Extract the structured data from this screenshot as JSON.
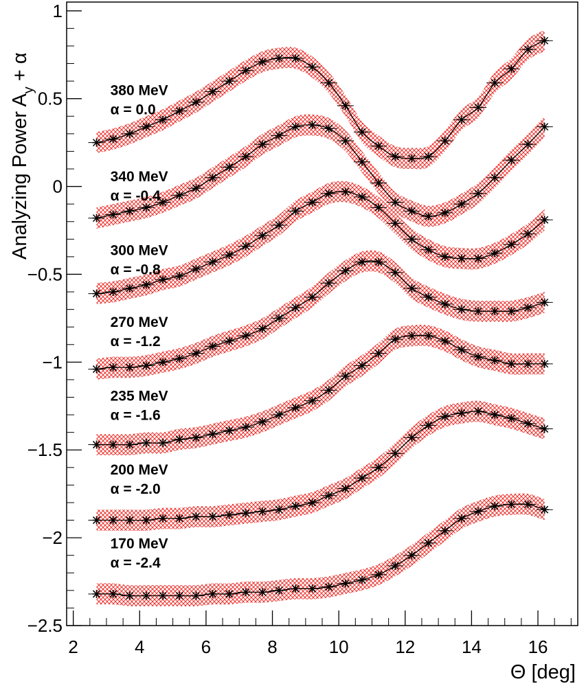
{
  "chart_data": {
    "type": "line",
    "xlabel": "Θ [deg]",
    "ylabel_main": "Analyzing Power A",
    "ylabel_sub": "y",
    "ylabel_tail": " + α",
    "xlim": [
      1.8,
      17.2
    ],
    "ylim": [
      -2.5,
      1.05
    ],
    "xticks": [
      2,
      4,
      6,
      8,
      10,
      12,
      14,
      16
    ],
    "xtick_labels": [
      "2",
      "4",
      "6",
      "8",
      "10",
      "12",
      "14",
      "16"
    ],
    "yticks": [
      1,
      0.5,
      0,
      -0.5,
      -1,
      -1.5,
      -2,
      -2.5
    ],
    "ytick_labels": [
      "1",
      "0.5",
      "0",
      "−0.5",
      "−1",
      "−1.5",
      "−2",
      "−2.5"
    ],
    "band_color": "#e8322d",
    "marker_color": "#000000",
    "series": [
      {
        "energy": "380 MeV",
        "alpha_label": "α = 0.0",
        "label_x": 3.2,
        "label_y": 0.52,
        "band_halfwidth": 0.06,
        "x": [
          2.7,
          3.2,
          3.7,
          4.2,
          4.7,
          5.2,
          5.7,
          6.2,
          6.7,
          7.2,
          7.7,
          8.2,
          8.7,
          9.2,
          9.7,
          10.2,
          10.7,
          11.2,
          11.7,
          12.2,
          12.7,
          13.2,
          13.7,
          14.2,
          14.7,
          15.2,
          15.7,
          16.2
        ],
        "y": [
          0.25,
          0.27,
          0.3,
          0.34,
          0.38,
          0.43,
          0.48,
          0.54,
          0.6,
          0.66,
          0.71,
          0.73,
          0.73,
          0.68,
          0.59,
          0.46,
          0.31,
          0.23,
          0.17,
          0.16,
          0.17,
          0.26,
          0.38,
          0.45,
          0.59,
          0.67,
          0.78,
          0.83
        ]
      },
      {
        "energy": "340 MeV",
        "alpha_label": "α = -0.4",
        "label_x": 3.2,
        "label_y": 0.03,
        "band_halfwidth": 0.06,
        "x": [
          2.7,
          3.2,
          3.7,
          4.2,
          4.7,
          5.2,
          5.7,
          6.2,
          6.7,
          7.2,
          7.7,
          8.2,
          8.7,
          9.2,
          9.7,
          10.2,
          10.7,
          11.2,
          11.7,
          12.2,
          12.7,
          13.2,
          13.7,
          14.2,
          14.7,
          15.2,
          15.7,
          16.2
        ],
        "y": [
          -0.18,
          -0.16,
          -0.14,
          -0.12,
          -0.09,
          -0.05,
          -0.01,
          0.05,
          0.11,
          0.17,
          0.24,
          0.29,
          0.34,
          0.35,
          0.33,
          0.26,
          0.14,
          0.02,
          -0.09,
          -0.14,
          -0.17,
          -0.15,
          -0.1,
          -0.04,
          0.05,
          0.15,
          0.24,
          0.34
        ]
      },
      {
        "energy": "300 MeV",
        "alpha_label": "α = -0.8",
        "label_x": 3.2,
        "label_y": -0.39,
        "band_halfwidth": 0.06,
        "x": [
          2.7,
          3.2,
          3.7,
          4.2,
          4.7,
          5.2,
          5.7,
          6.2,
          6.7,
          7.2,
          7.7,
          8.2,
          8.7,
          9.2,
          9.7,
          10.2,
          10.7,
          11.2,
          11.7,
          12.2,
          12.7,
          13.2,
          13.7,
          14.2,
          14.7,
          15.2,
          15.7,
          16.2
        ],
        "y": [
          -0.61,
          -0.6,
          -0.58,
          -0.56,
          -0.53,
          -0.51,
          -0.47,
          -0.43,
          -0.39,
          -0.34,
          -0.28,
          -0.22,
          -0.14,
          -0.09,
          -0.04,
          -0.03,
          -0.06,
          -0.12,
          -0.21,
          -0.3,
          -0.36,
          -0.4,
          -0.41,
          -0.41,
          -0.38,
          -0.33,
          -0.27,
          -0.19
        ]
      },
      {
        "energy": "270 MeV",
        "alpha_label": "α = -1.2",
        "label_x": 3.2,
        "label_y": -0.8,
        "band_halfwidth": 0.06,
        "x": [
          2.7,
          3.2,
          3.7,
          4.2,
          4.7,
          5.2,
          5.7,
          6.2,
          6.7,
          7.2,
          7.7,
          8.2,
          8.7,
          9.2,
          9.7,
          10.2,
          10.7,
          11.2,
          11.7,
          12.2,
          12.7,
          13.2,
          13.7,
          14.2,
          14.7,
          15.2,
          15.7,
          16.2
        ],
        "y": [
          -1.04,
          -1.03,
          -1.03,
          -1.02,
          -1.0,
          -0.98,
          -0.95,
          -0.91,
          -0.88,
          -0.85,
          -0.81,
          -0.75,
          -0.69,
          -0.63,
          -0.55,
          -0.48,
          -0.43,
          -0.43,
          -0.49,
          -0.58,
          -0.63,
          -0.67,
          -0.7,
          -0.71,
          -0.71,
          -0.71,
          -0.69,
          -0.66
        ]
      },
      {
        "energy": "235 MeV",
        "alpha_label": "α = -1.6",
        "label_x": 3.2,
        "label_y": -1.22,
        "band_halfwidth": 0.06,
        "x": [
          2.7,
          3.2,
          3.7,
          4.2,
          4.7,
          5.2,
          5.7,
          6.2,
          6.7,
          7.2,
          7.7,
          8.2,
          8.7,
          9.2,
          9.7,
          10.2,
          10.7,
          11.2,
          11.7,
          12.2,
          12.7,
          13.2,
          13.7,
          14.2,
          14.7,
          15.2,
          15.7,
          16.2
        ],
        "y": [
          -1.47,
          -1.47,
          -1.47,
          -1.46,
          -1.46,
          -1.44,
          -1.43,
          -1.41,
          -1.39,
          -1.37,
          -1.34,
          -1.3,
          -1.26,
          -1.22,
          -1.16,
          -1.08,
          -1.02,
          -0.95,
          -0.87,
          -0.85,
          -0.85,
          -0.88,
          -0.93,
          -0.97,
          -0.99,
          -1.01,
          -1.01,
          -1.01
        ]
      },
      {
        "energy": "200 MeV",
        "alpha_label": "α = -2.0",
        "label_x": 3.2,
        "label_y": -1.64,
        "band_halfwidth": 0.06,
        "x": [
          2.7,
          3.2,
          3.7,
          4.2,
          4.7,
          5.2,
          5.7,
          6.2,
          6.7,
          7.2,
          7.7,
          8.2,
          8.7,
          9.2,
          9.7,
          10.2,
          10.7,
          11.2,
          11.7,
          12.2,
          12.7,
          13.2,
          13.7,
          14.2,
          14.7,
          15.2,
          15.7,
          16.2
        ],
        "y": [
          -1.9,
          -1.9,
          -1.9,
          -1.9,
          -1.89,
          -1.89,
          -1.88,
          -1.88,
          -1.87,
          -1.86,
          -1.85,
          -1.84,
          -1.82,
          -1.8,
          -1.76,
          -1.72,
          -1.66,
          -1.6,
          -1.52,
          -1.43,
          -1.36,
          -1.31,
          -1.29,
          -1.28,
          -1.3,
          -1.32,
          -1.35,
          -1.38
        ]
      },
      {
        "energy": "170 MeV",
        "alpha_label": "α = -2.4",
        "label_x": 3.2,
        "label_y": -2.06,
        "band_halfwidth": 0.06,
        "x": [
          2.7,
          3.2,
          3.7,
          4.2,
          4.7,
          5.2,
          5.7,
          6.2,
          6.7,
          7.2,
          7.7,
          8.2,
          8.7,
          9.2,
          9.7,
          10.2,
          10.7,
          11.2,
          11.7,
          12.2,
          12.7,
          13.2,
          13.7,
          14.2,
          14.7,
          15.2,
          15.7,
          16.2
        ],
        "y": [
          -2.32,
          -2.32,
          -2.33,
          -2.33,
          -2.33,
          -2.33,
          -2.33,
          -2.32,
          -2.32,
          -2.31,
          -2.31,
          -2.3,
          -2.29,
          -2.29,
          -2.28,
          -2.26,
          -2.24,
          -2.21,
          -2.16,
          -2.1,
          -2.03,
          -1.96,
          -1.89,
          -1.85,
          -1.82,
          -1.81,
          -1.81,
          -1.84
        ]
      }
    ]
  }
}
